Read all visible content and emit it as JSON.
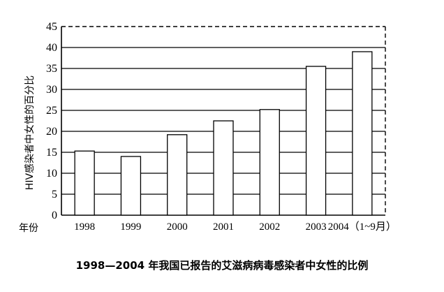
{
  "chart_data": {
    "type": "bar",
    "title": "1998—2004 年我国已报告的艾滋病病毒感染者中女性的比例",
    "ylabel": "HIV感染者中女性的百分比",
    "xlabel": "年份",
    "categories": [
      "1998",
      "1999",
      "2000",
      "2001",
      "2002",
      "2003",
      "2004（1~9月）"
    ],
    "values": [
      15.3,
      14.0,
      19.2,
      22.5,
      25.2,
      35.5,
      39.0
    ],
    "ylim": [
      0,
      45
    ],
    "yticks": [
      "0",
      "5",
      "10",
      "15",
      "20",
      "25",
      "30",
      "35",
      "40",
      "45"
    ],
    "grid": true,
    "colors": {
      "bar_fill": "#ffffff",
      "stroke": "#000000"
    }
  }
}
